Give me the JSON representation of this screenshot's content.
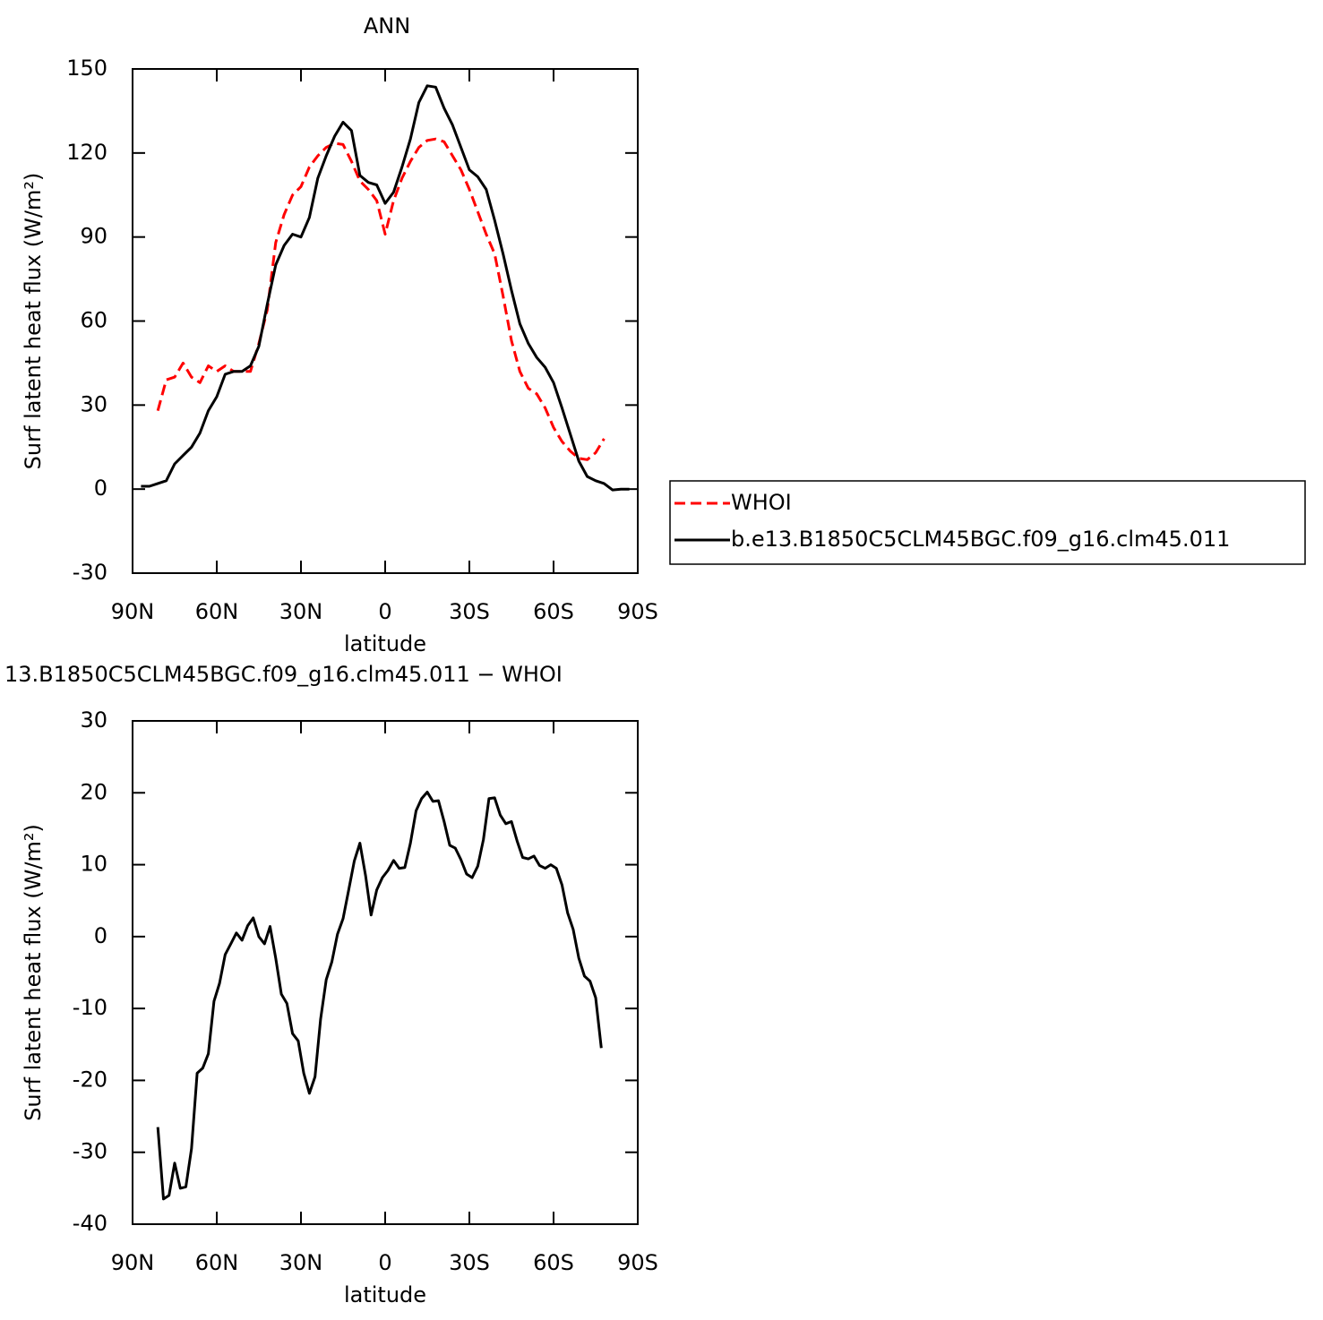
{
  "chart_data": [
    {
      "type": "line",
      "title": "ANN",
      "xlabel": "latitude",
      "ylabel": "Surf latent heat flux (W/m²)",
      "xlim": [
        90,
        -90
      ],
      "ylim": [
        -30,
        150
      ],
      "xticks": [
        {
          "value": 90,
          "label": "90N"
        },
        {
          "value": 60,
          "label": "60N"
        },
        {
          "value": 30,
          "label": "30N"
        },
        0,
        {
          "value": -30,
          "label": "30S"
        },
        {
          "value": -60,
          "label": "60S"
        },
        {
          "value": -90,
          "label": "90S"
        }
      ],
      "yticks": [
        -30,
        0,
        30,
        60,
        90,
        120,
        150
      ],
      "legend": "outside-right",
      "series": [
        {
          "name": "WHOI",
          "color": "#ff0000",
          "dash": true,
          "x": [
            81,
            78,
            75,
            72,
            69,
            66,
            63,
            60,
            57,
            54,
            51,
            48,
            45,
            42,
            39,
            36,
            33,
            30,
            27,
            24,
            21,
            18,
            15,
            12,
            9,
            6,
            3,
            0,
            -3,
            -6,
            -9,
            -12,
            -15,
            -18,
            -21,
            -24,
            -27,
            -30,
            -33,
            -36,
            -39,
            -42,
            -45,
            -48,
            -51,
            -54,
            -57,
            -60,
            -63,
            -66,
            -69,
            -72,
            -75,
            -78
          ],
          "values": [
            28,
            39,
            40,
            45,
            40,
            38,
            44,
            42,
            44,
            42,
            42,
            42,
            52,
            64,
            88,
            98,
            105,
            108,
            115,
            119,
            122,
            123.5,
            123,
            117,
            110,
            107,
            103,
            91,
            103,
            111,
            117,
            122,
            124.5,
            125,
            124,
            119,
            114,
            107,
            99,
            91,
            84,
            69,
            53,
            42,
            36,
            34,
            29,
            22,
            17,
            13.5,
            11,
            10.5,
            13,
            18
          ]
        },
        {
          "name": "b.e13.B1850C5CLM45BGC.f09_g16.clm45.011",
          "color": "#000000",
          "dash": false,
          "x": [
            87,
            84,
            81,
            78,
            75,
            72,
            69,
            66,
            63,
            60,
            57,
            54,
            51,
            48,
            45,
            42,
            39,
            36,
            33,
            30,
            27,
            24,
            21,
            18,
            15,
            12,
            9,
            6,
            3,
            0,
            -3,
            -6,
            -9,
            -12,
            -15,
            -18,
            -21,
            -24,
            -27,
            -30,
            -33,
            -36,
            -39,
            -42,
            -45,
            -48,
            -51,
            -54,
            -57,
            -60,
            -63,
            -66,
            -69,
            -72,
            -75,
            -78,
            -81,
            -84,
            -87
          ],
          "values": [
            1,
            1,
            2,
            3,
            9,
            12,
            15,
            20,
            28,
            33,
            41,
            42,
            42,
            44,
            51,
            66,
            80,
            87,
            91,
            90,
            97,
            111,
            119,
            126,
            131,
            128,
            112,
            109.5,
            108.6,
            102,
            106,
            115,
            125,
            138,
            144,
            143.5,
            136,
            130,
            122,
            114,
            111.5,
            107,
            96,
            84,
            71,
            59,
            52,
            47,
            43.5,
            38,
            29,
            19.5,
            10,
            4.5,
            3,
            2,
            -0.3,
            0,
            0
          ]
        }
      ]
    },
    {
      "type": "line",
      "title": "13.B1850C5CLM45BGC.f09_g16.clm45.011 − WHOI",
      "xlabel": "latitude",
      "ylabel": "Surf latent heat flux (W/m²)",
      "xlim": [
        90,
        -90
      ],
      "ylim": [
        -40,
        30
      ],
      "xticks": [
        {
          "value": 90,
          "label": "90N"
        },
        {
          "value": 60,
          "label": "60N"
        },
        {
          "value": 30,
          "label": "30N"
        },
        0,
        {
          "value": -30,
          "label": "30S"
        },
        {
          "value": -60,
          "label": "60S"
        },
        {
          "value": -90,
          "label": "90S"
        }
      ],
      "yticks": [
        -40,
        -30,
        -20,
        -10,
        0,
        10,
        20,
        30
      ],
      "series": [
        {
          "color": "#000000",
          "dash": false,
          "x": [
            81,
            79,
            77,
            75,
            73,
            71,
            69,
            67,
            65,
            63,
            61,
            59,
            57,
            55,
            53,
            51,
            49,
            47,
            45,
            43,
            41,
            39,
            37,
            35,
            33,
            31,
            29,
            27,
            25,
            23,
            21,
            19,
            17,
            15,
            13,
            11,
            9,
            7,
            5,
            3,
            1,
            -1,
            -3,
            -5,
            -7,
            -9,
            -11,
            -13,
            -15,
            -17,
            -19,
            -21,
            -23,
            -25,
            -27,
            -29,
            -31,
            -33,
            -35,
            -37,
            -39,
            -41,
            -43,
            -45,
            -47,
            -49,
            -51,
            -53,
            -55,
            -57,
            -59,
            -61,
            -63,
            -65,
            -67,
            -69,
            -71,
            -73,
            -75,
            -77
          ],
          "values": [
            -26.5,
            -36.5,
            -36,
            -31.5,
            -35,
            -34.8,
            -29.5,
            -19,
            -18.3,
            -16.3,
            -9,
            -6.5,
            -2.5,
            -1,
            0.5,
            -0.5,
            1.5,
            2.6,
            0,
            -1,
            1.4,
            -3,
            -8,
            -9.3,
            -13.5,
            -14.5,
            -19,
            -21.8,
            -19.5,
            -11.5,
            -6,
            -3.5,
            0.3,
            2.5,
            6.5,
            10.5,
            13,
            8.5,
            3,
            6.5,
            8.2,
            9.2,
            10.6,
            9.5,
            9.6,
            13,
            17.5,
            19.2,
            20.1,
            18.8,
            18.9,
            16,
            12.7,
            12.3,
            10.7,
            8.7,
            8.2,
            9.8,
            13.5,
            19.2,
            19.3,
            16.9,
            15.7,
            16,
            13.3,
            11,
            10.8,
            11.2,
            9.9,
            9.5,
            10,
            9.5,
            7.2,
            3.3,
            1,
            -3,
            -5.5,
            -6.2,
            -8.5,
            -15.5
          ]
        }
      ]
    }
  ]
}
